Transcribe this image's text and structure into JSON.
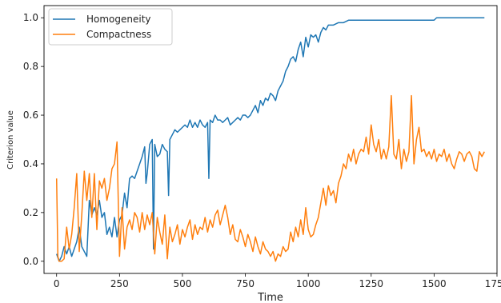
{
  "chart_data": {
    "type": "line",
    "xlabel": "Time",
    "ylabel": "Criterion value",
    "xlim": [
      -50,
      1750
    ],
    "ylim": [
      -0.05,
      1.05
    ],
    "xticks": [
      0,
      250,
      500,
      750,
      1000,
      1250,
      1500,
      1750
    ],
    "yticks": [
      0.0,
      0.2,
      0.4,
      0.6,
      0.8,
      1.0
    ],
    "grid": false,
    "legend_position": "top-left",
    "series": [
      {
        "name": "Homogeneity",
        "color": "#1f77b4",
        "points": [
          [
            0,
            0.03
          ],
          [
            10,
            0.0
          ],
          [
            20,
            0.02
          ],
          [
            30,
            0.06
          ],
          [
            40,
            0.03
          ],
          [
            50,
            0.06
          ],
          [
            60,
            0.02
          ],
          [
            70,
            0.05
          ],
          [
            80,
            0.08
          ],
          [
            90,
            0.14
          ],
          [
            100,
            0.06
          ],
          [
            110,
            0.04
          ],
          [
            120,
            0.02
          ],
          [
            130,
            0.25
          ],
          [
            140,
            0.19
          ],
          [
            150,
            0.22
          ],
          [
            160,
            0.19
          ],
          [
            170,
            0.25
          ],
          [
            180,
            0.18
          ],
          [
            190,
            0.2
          ],
          [
            200,
            0.11
          ],
          [
            210,
            0.14
          ],
          [
            220,
            0.1
          ],
          [
            230,
            0.18
          ],
          [
            240,
            0.1
          ],
          [
            250,
            0.17
          ],
          [
            260,
            0.19
          ],
          [
            270,
            0.28
          ],
          [
            280,
            0.22
          ],
          [
            290,
            0.34
          ],
          [
            300,
            0.35
          ],
          [
            310,
            0.34
          ],
          [
            320,
            0.37
          ],
          [
            330,
            0.4
          ],
          [
            340,
            0.43
          ],
          [
            350,
            0.47
          ],
          [
            355,
            0.32
          ],
          [
            360,
            0.36
          ],
          [
            370,
            0.48
          ],
          [
            380,
            0.5
          ],
          [
            385,
            0.05
          ],
          [
            390,
            0.48
          ],
          [
            400,
            0.43
          ],
          [
            410,
            0.44
          ],
          [
            420,
            0.48
          ],
          [
            430,
            0.46
          ],
          [
            440,
            0.45
          ],
          [
            445,
            0.27
          ],
          [
            450,
            0.5
          ],
          [
            460,
            0.52
          ],
          [
            470,
            0.54
          ],
          [
            480,
            0.53
          ],
          [
            490,
            0.54
          ],
          [
            500,
            0.55
          ],
          [
            510,
            0.56
          ],
          [
            520,
            0.55
          ],
          [
            530,
            0.58
          ],
          [
            540,
            0.55
          ],
          [
            550,
            0.57
          ],
          [
            560,
            0.55
          ],
          [
            570,
            0.58
          ],
          [
            580,
            0.56
          ],
          [
            590,
            0.55
          ],
          [
            600,
            0.57
          ],
          [
            605,
            0.34
          ],
          [
            610,
            0.58
          ],
          [
            620,
            0.57
          ],
          [
            630,
            0.6
          ],
          [
            640,
            0.58
          ],
          [
            650,
            0.58
          ],
          [
            660,
            0.57
          ],
          [
            670,
            0.58
          ],
          [
            680,
            0.59
          ],
          [
            690,
            0.56
          ],
          [
            700,
            0.57
          ],
          [
            710,
            0.58
          ],
          [
            720,
            0.59
          ],
          [
            730,
            0.58
          ],
          [
            740,
            0.6
          ],
          [
            750,
            0.6
          ],
          [
            760,
            0.59
          ],
          [
            770,
            0.6
          ],
          [
            780,
            0.62
          ],
          [
            790,
            0.64
          ],
          [
            800,
            0.61
          ],
          [
            810,
            0.66
          ],
          [
            820,
            0.64
          ],
          [
            830,
            0.67
          ],
          [
            840,
            0.66
          ],
          [
            850,
            0.69
          ],
          [
            860,
            0.68
          ],
          [
            870,
            0.66
          ],
          [
            880,
            0.7
          ],
          [
            890,
            0.72
          ],
          [
            900,
            0.74
          ],
          [
            910,
            0.78
          ],
          [
            920,
            0.8
          ],
          [
            930,
            0.83
          ],
          [
            940,
            0.84
          ],
          [
            950,
            0.82
          ],
          [
            960,
            0.87
          ],
          [
            970,
            0.9
          ],
          [
            980,
            0.84
          ],
          [
            990,
            0.92
          ],
          [
            1000,
            0.88
          ],
          [
            1010,
            0.93
          ],
          [
            1020,
            0.92
          ],
          [
            1030,
            0.93
          ],
          [
            1040,
            0.9
          ],
          [
            1050,
            0.94
          ],
          [
            1060,
            0.96
          ],
          [
            1070,
            0.95
          ],
          [
            1080,
            0.97
          ],
          [
            1100,
            0.97
          ],
          [
            1120,
            0.98
          ],
          [
            1140,
            0.98
          ],
          [
            1160,
            0.99
          ],
          [
            1500,
            0.99
          ],
          [
            1510,
            1.0
          ],
          [
            1700,
            1.0
          ]
        ]
      },
      {
        "name": "Compactness",
        "color": "#ff7f0e",
        "points": [
          [
            0,
            0.34
          ],
          [
            5,
            0.02
          ],
          [
            10,
            0.0
          ],
          [
            20,
            0.0
          ],
          [
            30,
            0.01
          ],
          [
            40,
            0.14
          ],
          [
            50,
            0.05
          ],
          [
            60,
            0.11
          ],
          [
            70,
            0.22
          ],
          [
            80,
            0.36
          ],
          [
            90,
            0.04
          ],
          [
            100,
            0.19
          ],
          [
            110,
            0.37
          ],
          [
            120,
            0.25
          ],
          [
            130,
            0.36
          ],
          [
            140,
            0.18
          ],
          [
            150,
            0.36
          ],
          [
            160,
            0.13
          ],
          [
            170,
            0.33
          ],
          [
            180,
            0.3
          ],
          [
            190,
            0.34
          ],
          [
            200,
            0.25
          ],
          [
            210,
            0.3
          ],
          [
            220,
            0.38
          ],
          [
            230,
            0.4
          ],
          [
            240,
            0.49
          ],
          [
            245,
            0.25
          ],
          [
            250,
            0.02
          ],
          [
            260,
            0.22
          ],
          [
            270,
            0.05
          ],
          [
            280,
            0.14
          ],
          [
            290,
            0.17
          ],
          [
            300,
            0.13
          ],
          [
            310,
            0.2
          ],
          [
            320,
            0.18
          ],
          [
            330,
            0.12
          ],
          [
            340,
            0.2
          ],
          [
            350,
            0.13
          ],
          [
            360,
            0.19
          ],
          [
            370,
            0.15
          ],
          [
            380,
            0.2
          ],
          [
            390,
            0.03
          ],
          [
            400,
            0.18
          ],
          [
            410,
            0.12
          ],
          [
            420,
            0.07
          ],
          [
            430,
            0.19
          ],
          [
            440,
            0.01
          ],
          [
            450,
            0.14
          ],
          [
            460,
            0.08
          ],
          [
            470,
            0.11
          ],
          [
            480,
            0.15
          ],
          [
            490,
            0.07
          ],
          [
            500,
            0.13
          ],
          [
            510,
            0.1
          ],
          [
            520,
            0.14
          ],
          [
            530,
            0.17
          ],
          [
            540,
            0.09
          ],
          [
            550,
            0.15
          ],
          [
            560,
            0.11
          ],
          [
            570,
            0.14
          ],
          [
            580,
            0.13
          ],
          [
            590,
            0.18
          ],
          [
            600,
            0.12
          ],
          [
            610,
            0.17
          ],
          [
            620,
            0.14
          ],
          [
            630,
            0.19
          ],
          [
            640,
            0.21
          ],
          [
            650,
            0.15
          ],
          [
            660,
            0.19
          ],
          [
            670,
            0.23
          ],
          [
            680,
            0.18
          ],
          [
            690,
            0.11
          ],
          [
            700,
            0.15
          ],
          [
            710,
            0.09
          ],
          [
            720,
            0.08
          ],
          [
            730,
            0.13
          ],
          [
            740,
            0.1
          ],
          [
            750,
            0.06
          ],
          [
            760,
            0.11
          ],
          [
            770,
            0.08
          ],
          [
            780,
            0.04
          ],
          [
            790,
            0.1
          ],
          [
            800,
            0.06
          ],
          [
            810,
            0.03
          ],
          [
            820,
            0.08
          ],
          [
            830,
            0.05
          ],
          [
            840,
            0.04
          ],
          [
            850,
            0.02
          ],
          [
            860,
            0.04
          ],
          [
            870,
            0.0
          ],
          [
            880,
            0.03
          ],
          [
            890,
            0.02
          ],
          [
            900,
            0.06
          ],
          [
            910,
            0.04
          ],
          [
            920,
            0.05
          ],
          [
            930,
            0.12
          ],
          [
            940,
            0.08
          ],
          [
            950,
            0.14
          ],
          [
            960,
            0.1
          ],
          [
            970,
            0.17
          ],
          [
            980,
            0.11
          ],
          [
            990,
            0.22
          ],
          [
            1000,
            0.13
          ],
          [
            1010,
            0.1
          ],
          [
            1020,
            0.11
          ],
          [
            1030,
            0.15
          ],
          [
            1040,
            0.18
          ],
          [
            1050,
            0.24
          ],
          [
            1060,
            0.3
          ],
          [
            1070,
            0.23
          ],
          [
            1080,
            0.31
          ],
          [
            1090,
            0.27
          ],
          [
            1100,
            0.29
          ],
          [
            1110,
            0.24
          ],
          [
            1120,
            0.32
          ],
          [
            1130,
            0.35
          ],
          [
            1140,
            0.4
          ],
          [
            1150,
            0.38
          ],
          [
            1160,
            0.44
          ],
          [
            1170,
            0.41
          ],
          [
            1180,
            0.46
          ],
          [
            1190,
            0.4
          ],
          [
            1200,
            0.44
          ],
          [
            1210,
            0.46
          ],
          [
            1220,
            0.45
          ],
          [
            1230,
            0.51
          ],
          [
            1240,
            0.44
          ],
          [
            1250,
            0.56
          ],
          [
            1260,
            0.48
          ],
          [
            1270,
            0.45
          ],
          [
            1280,
            0.5
          ],
          [
            1290,
            0.42
          ],
          [
            1300,
            0.46
          ],
          [
            1310,
            0.42
          ],
          [
            1320,
            0.47
          ],
          [
            1330,
            0.68
          ],
          [
            1340,
            0.44
          ],
          [
            1350,
            0.42
          ],
          [
            1360,
            0.5
          ],
          [
            1370,
            0.38
          ],
          [
            1380,
            0.46
          ],
          [
            1390,
            0.41
          ],
          [
            1400,
            0.45
          ],
          [
            1410,
            0.68
          ],
          [
            1420,
            0.4
          ],
          [
            1430,
            0.5
          ],
          [
            1440,
            0.55
          ],
          [
            1450,
            0.45
          ],
          [
            1460,
            0.46
          ],
          [
            1470,
            0.43
          ],
          [
            1480,
            0.45
          ],
          [
            1490,
            0.42
          ],
          [
            1500,
            0.46
          ],
          [
            1510,
            0.41
          ],
          [
            1520,
            0.44
          ],
          [
            1530,
            0.43
          ],
          [
            1540,
            0.46
          ],
          [
            1550,
            0.41
          ],
          [
            1560,
            0.44
          ],
          [
            1570,
            0.4
          ],
          [
            1580,
            0.38
          ],
          [
            1590,
            0.42
          ],
          [
            1600,
            0.45
          ],
          [
            1610,
            0.44
          ],
          [
            1620,
            0.41
          ],
          [
            1630,
            0.44
          ],
          [
            1640,
            0.45
          ],
          [
            1650,
            0.43
          ],
          [
            1660,
            0.38
          ],
          [
            1670,
            0.37
          ],
          [
            1680,
            0.45
          ],
          [
            1690,
            0.43
          ],
          [
            1700,
            0.45
          ]
        ]
      }
    ]
  }
}
